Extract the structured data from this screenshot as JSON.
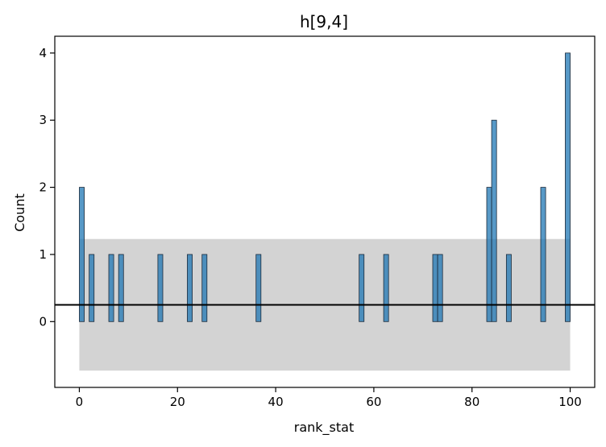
{
  "chart_data": {
    "type": "bar",
    "title": "h[9,4]",
    "xlabel": "rank_stat",
    "ylabel": "Count",
    "xlim": [
      -5,
      105
    ],
    "ylim": [
      -0.98,
      4.25
    ],
    "xticks": [
      0,
      20,
      40,
      60,
      80,
      100
    ],
    "yticks": [
      0,
      1,
      2,
      3,
      4
    ],
    "bin_width": 1,
    "bars": [
      {
        "x": 0,
        "count": 2
      },
      {
        "x": 2,
        "count": 1
      },
      {
        "x": 6,
        "count": 1
      },
      {
        "x": 8,
        "count": 1
      },
      {
        "x": 16,
        "count": 1
      },
      {
        "x": 22,
        "count": 1
      },
      {
        "x": 25,
        "count": 1
      },
      {
        "x": 36,
        "count": 1
      },
      {
        "x": 57,
        "count": 1
      },
      {
        "x": 62,
        "count": 1
      },
      {
        "x": 72,
        "count": 1
      },
      {
        "x": 73,
        "count": 1
      },
      {
        "x": 83,
        "count": 2
      },
      {
        "x": 84,
        "count": 3
      },
      {
        "x": 87,
        "count": 1
      },
      {
        "x": 94,
        "count": 2
      },
      {
        "x": 99,
        "count": 4
      }
    ],
    "band": {
      "x_range": [
        0,
        100
      ],
      "y_range": [
        -0.73,
        1.23
      ],
      "color": "#d3d3d3"
    },
    "reference_line": {
      "y": 0.25,
      "color": "#000000"
    },
    "bar_color": "#1f77b4",
    "bar_edge_color": "#1b2a3a"
  }
}
